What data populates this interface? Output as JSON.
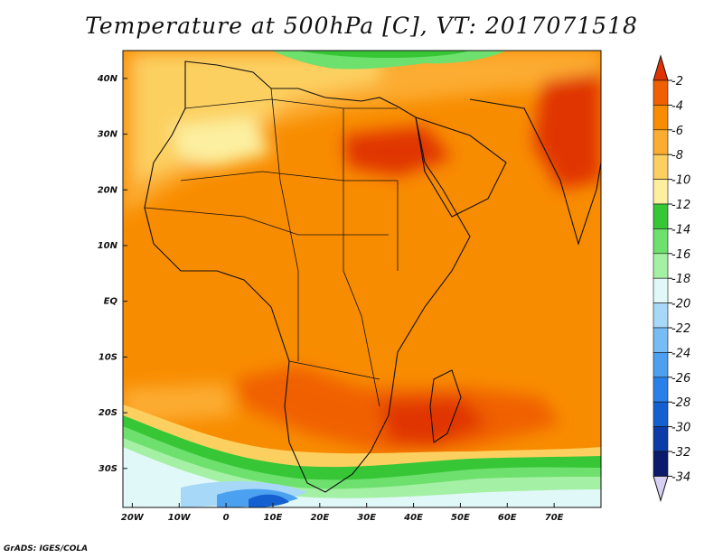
{
  "title": "Temperature at 500hPa [C], VT: 2017071518",
  "credit": "GrADS: IGES/COLA",
  "map": {
    "lon_range": [
      -22,
      80
    ],
    "lat_range": [
      -37,
      45
    ],
    "lat_ticks": [
      {
        "value": 40,
        "label": "40N"
      },
      {
        "value": 30,
        "label": "30N"
      },
      {
        "value": 20,
        "label": "20N"
      },
      {
        "value": 10,
        "label": "10N"
      },
      {
        "value": 0,
        "label": "EQ"
      },
      {
        "value": -10,
        "label": "10S"
      },
      {
        "value": -20,
        "label": "20S"
      },
      {
        "value": -30,
        "label": "30S"
      }
    ],
    "lon_ticks": [
      {
        "value": -20,
        "label": "20W"
      },
      {
        "value": -10,
        "label": "10W"
      },
      {
        "value": 0,
        "label": "0"
      },
      {
        "value": 10,
        "label": "10E"
      },
      {
        "value": 20,
        "label": "20E"
      },
      {
        "value": 30,
        "label": "30E"
      },
      {
        "value": 40,
        "label": "40E"
      },
      {
        "value": 50,
        "label": "50E"
      },
      {
        "value": 60,
        "label": "60E"
      },
      {
        "value": 70,
        "label": "70E"
      }
    ]
  },
  "colorbar": {
    "labels": [
      "-2",
      "-4",
      "-6",
      "-8",
      "-10",
      "-12",
      "-14",
      "-16",
      "-18",
      "-20",
      "-22",
      "-24",
      "-26",
      "-28",
      "-30",
      "-32",
      "-34"
    ],
    "colors": [
      "#e03400",
      "#f06000",
      "#f88c00",
      "#fcac30",
      "#fcd060",
      "#fcf0a0",
      "#36c636",
      "#6ee06e",
      "#a4f0a4",
      "#e0f8f8",
      "#a8d8f8",
      "#78bcf4",
      "#4ca0f0",
      "#2880e8",
      "#1460d0",
      "#0c3ca8",
      "#0c1a6c"
    ]
  }
}
